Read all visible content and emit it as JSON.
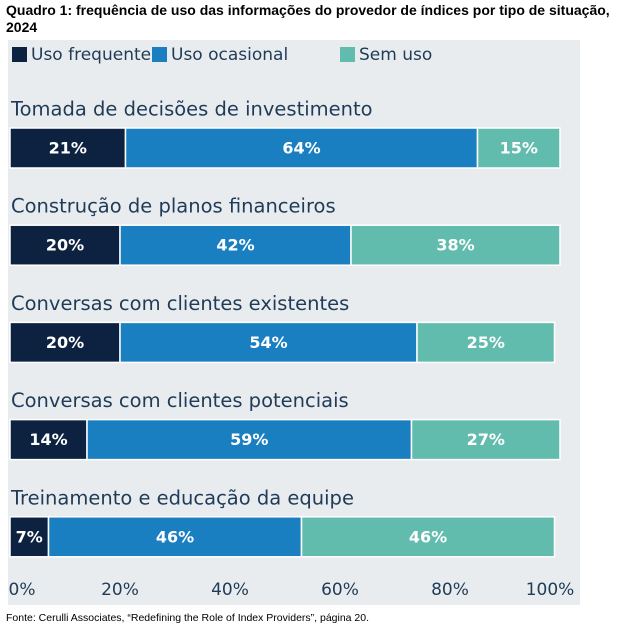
{
  "chart_data": {
    "type": "bar",
    "orientation": "horizontal",
    "stacked": true,
    "title": "Quadro 1: frequência de uso das informações do provedor de índices por tipo de situação, 2024",
    "source": "Fonte: Cerulli Associates, “Redefining the Role of Index Providers”, página 20.",
    "categories": [
      "Tomada de decisões de investimento",
      "Construção de planos financeiros",
      "Conversas com clientes existentes",
      "Conversas com clientes potenciais",
      "Treinamento e educação da equipe"
    ],
    "series": [
      {
        "name": "Uso frequente",
        "color": "#0d2240",
        "values": [
          21,
          20,
          20,
          14,
          7
        ],
        "value_labels": [
          "21%",
          "20%",
          "20%",
          "14%",
          "7%"
        ]
      },
      {
        "name": "Uso ocasional",
        "color": "#1a7fc1",
        "values": [
          64,
          42,
          54,
          59,
          46
        ],
        "value_labels": [
          "64%",
          "42%",
          "54%",
          "59%",
          "46%"
        ]
      },
      {
        "name": "Sem uso",
        "color": "#62bcae",
        "values": [
          15,
          38,
          25,
          27,
          46
        ],
        "value_labels": [
          "15%",
          "38%",
          "25%",
          "27%",
          "46%"
        ]
      }
    ],
    "xlim": [
      0,
      100
    ],
    "xticks": [
      {
        "value": 0,
        "label": "0%"
      },
      {
        "value": 20,
        "label": "20%"
      },
      {
        "value": 40,
        "label": "40%"
      },
      {
        "value": 60,
        "label": "60%"
      },
      {
        "value": 80,
        "label": "80%"
      },
      {
        "value": 100,
        "label": "100%"
      }
    ],
    "grid": false,
    "legend": "top"
  }
}
